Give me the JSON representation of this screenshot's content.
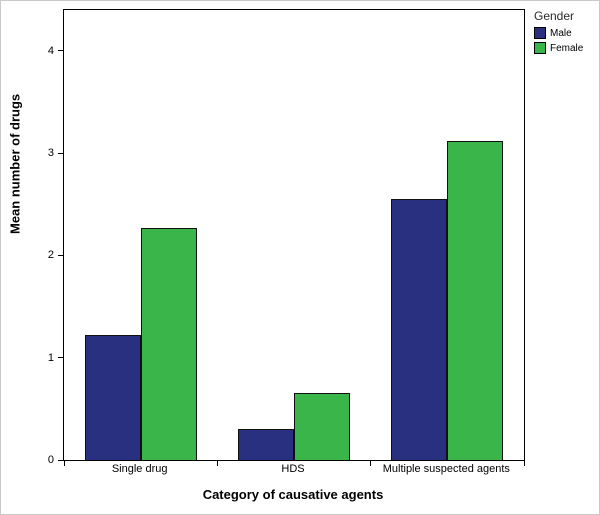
{
  "chart_data": {
    "type": "bar",
    "title": "",
    "xlabel": "Category of causative agents",
    "ylabel": "Mean number of drugs",
    "categories": [
      "Single drug",
      "HDS",
      "Multiple suspected agents"
    ],
    "series": [
      {
        "name": "Male",
        "color": "#2a3080",
        "values": [
          1.22,
          0.3,
          2.55
        ]
      },
      {
        "name": "Female",
        "color": "#3ab54a",
        "values": [
          2.27,
          0.66,
          3.12
        ]
      }
    ],
    "ylim": [
      0,
      4.4
    ],
    "yticks": [
      0,
      1,
      2,
      3,
      4
    ],
    "grid": false,
    "legend": {
      "title": "Gender",
      "position": "top-right"
    }
  }
}
